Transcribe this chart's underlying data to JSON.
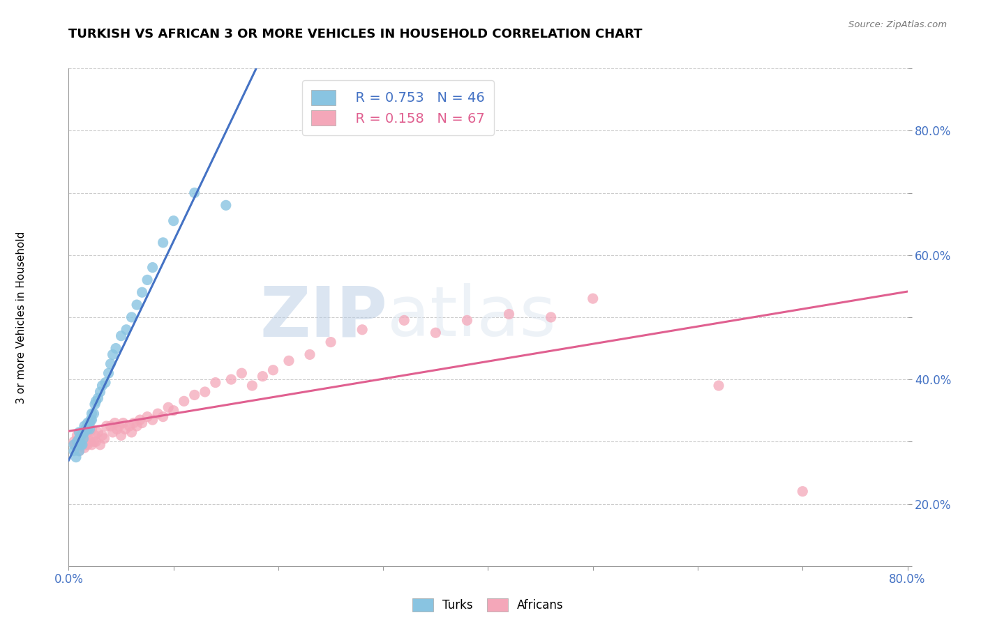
{
  "title": "TURKISH VS AFRICAN 3 OR MORE VEHICLES IN HOUSEHOLD CORRELATION CHART",
  "source": "Source: ZipAtlas.com",
  "ylabel": "3 or more Vehicles in Household",
  "xlim": [
    0.0,
    0.8
  ],
  "ylim": [
    0.0,
    0.8
  ],
  "xticks": [
    0.0,
    0.1,
    0.2,
    0.3,
    0.4,
    0.5,
    0.6,
    0.7,
    0.8
  ],
  "xticklabels": [
    "0.0%",
    "",
    "",
    "",
    "",
    "",
    "",
    "",
    "80.0%"
  ],
  "yticks": [
    0.0,
    0.1,
    0.2,
    0.3,
    0.4,
    0.5,
    0.6,
    0.7,
    0.8
  ],
  "yticklabels": [
    "",
    "20.0%",
    "",
    "40.0%",
    "",
    "60.0%",
    "",
    "80.0%",
    ""
  ],
  "turks_color": "#89c4e1",
  "africans_color": "#f4a7b9",
  "trendline_turks_color": "#4472c4",
  "trendline_africans_color": "#e06090",
  "legend_R_turks": "R = 0.753",
  "legend_N_turks": "N = 46",
  "legend_R_africans": "R = 0.158",
  "legend_N_africans": "N = 67",
  "watermark_zip": "ZIP",
  "watermark_atlas": "atlas",
  "background_color": "#ffffff",
  "grid_color": "#cccccc",
  "turks_x": [
    0.005,
    0.005,
    0.007,
    0.008,
    0.01,
    0.01,
    0.01,
    0.01,
    0.012,
    0.012,
    0.013,
    0.014,
    0.014,
    0.015,
    0.015,
    0.016,
    0.017,
    0.018,
    0.018,
    0.02,
    0.02,
    0.021,
    0.022,
    0.022,
    0.024,
    0.025,
    0.026,
    0.028,
    0.03,
    0.032,
    0.035,
    0.038,
    0.04,
    0.042,
    0.045,
    0.05,
    0.055,
    0.06,
    0.065,
    0.07,
    0.075,
    0.08,
    0.09,
    0.1,
    0.12,
    0.15
  ],
  "turks_y": [
    0.185,
    0.195,
    0.175,
    0.2,
    0.185,
    0.195,
    0.205,
    0.215,
    0.195,
    0.21,
    0.195,
    0.205,
    0.215,
    0.215,
    0.225,
    0.22,
    0.22,
    0.22,
    0.23,
    0.22,
    0.23,
    0.235,
    0.235,
    0.245,
    0.245,
    0.26,
    0.265,
    0.27,
    0.28,
    0.29,
    0.295,
    0.31,
    0.325,
    0.34,
    0.35,
    0.37,
    0.38,
    0.4,
    0.42,
    0.44,
    0.46,
    0.48,
    0.52,
    0.555,
    0.6,
    0.58
  ],
  "africans_x": [
    0.005,
    0.006,
    0.008,
    0.009,
    0.01,
    0.011,
    0.012,
    0.013,
    0.014,
    0.015,
    0.016,
    0.017,
    0.018,
    0.018,
    0.02,
    0.02,
    0.022,
    0.022,
    0.024,
    0.025,
    0.026,
    0.028,
    0.03,
    0.032,
    0.034,
    0.036,
    0.04,
    0.042,
    0.044,
    0.046,
    0.048,
    0.05,
    0.052,
    0.054,
    0.058,
    0.06,
    0.062,
    0.065,
    0.068,
    0.07,
    0.075,
    0.08,
    0.085,
    0.09,
    0.095,
    0.1,
    0.11,
    0.12,
    0.13,
    0.14,
    0.155,
    0.165,
    0.175,
    0.185,
    0.195,
    0.21,
    0.23,
    0.25,
    0.28,
    0.32,
    0.35,
    0.38,
    0.42,
    0.46,
    0.5,
    0.62,
    0.7
  ],
  "africans_y": [
    0.2,
    0.195,
    0.21,
    0.195,
    0.185,
    0.21,
    0.2,
    0.205,
    0.195,
    0.19,
    0.195,
    0.2,
    0.195,
    0.215,
    0.2,
    0.215,
    0.195,
    0.22,
    0.2,
    0.21,
    0.2,
    0.215,
    0.195,
    0.21,
    0.205,
    0.225,
    0.225,
    0.215,
    0.23,
    0.22,
    0.225,
    0.21,
    0.23,
    0.22,
    0.225,
    0.215,
    0.23,
    0.225,
    0.235,
    0.23,
    0.24,
    0.235,
    0.245,
    0.24,
    0.255,
    0.25,
    0.265,
    0.275,
    0.28,
    0.295,
    0.3,
    0.31,
    0.29,
    0.305,
    0.315,
    0.33,
    0.34,
    0.36,
    0.38,
    0.395,
    0.375,
    0.395,
    0.405,
    0.4,
    0.43,
    0.29,
    0.12
  ]
}
